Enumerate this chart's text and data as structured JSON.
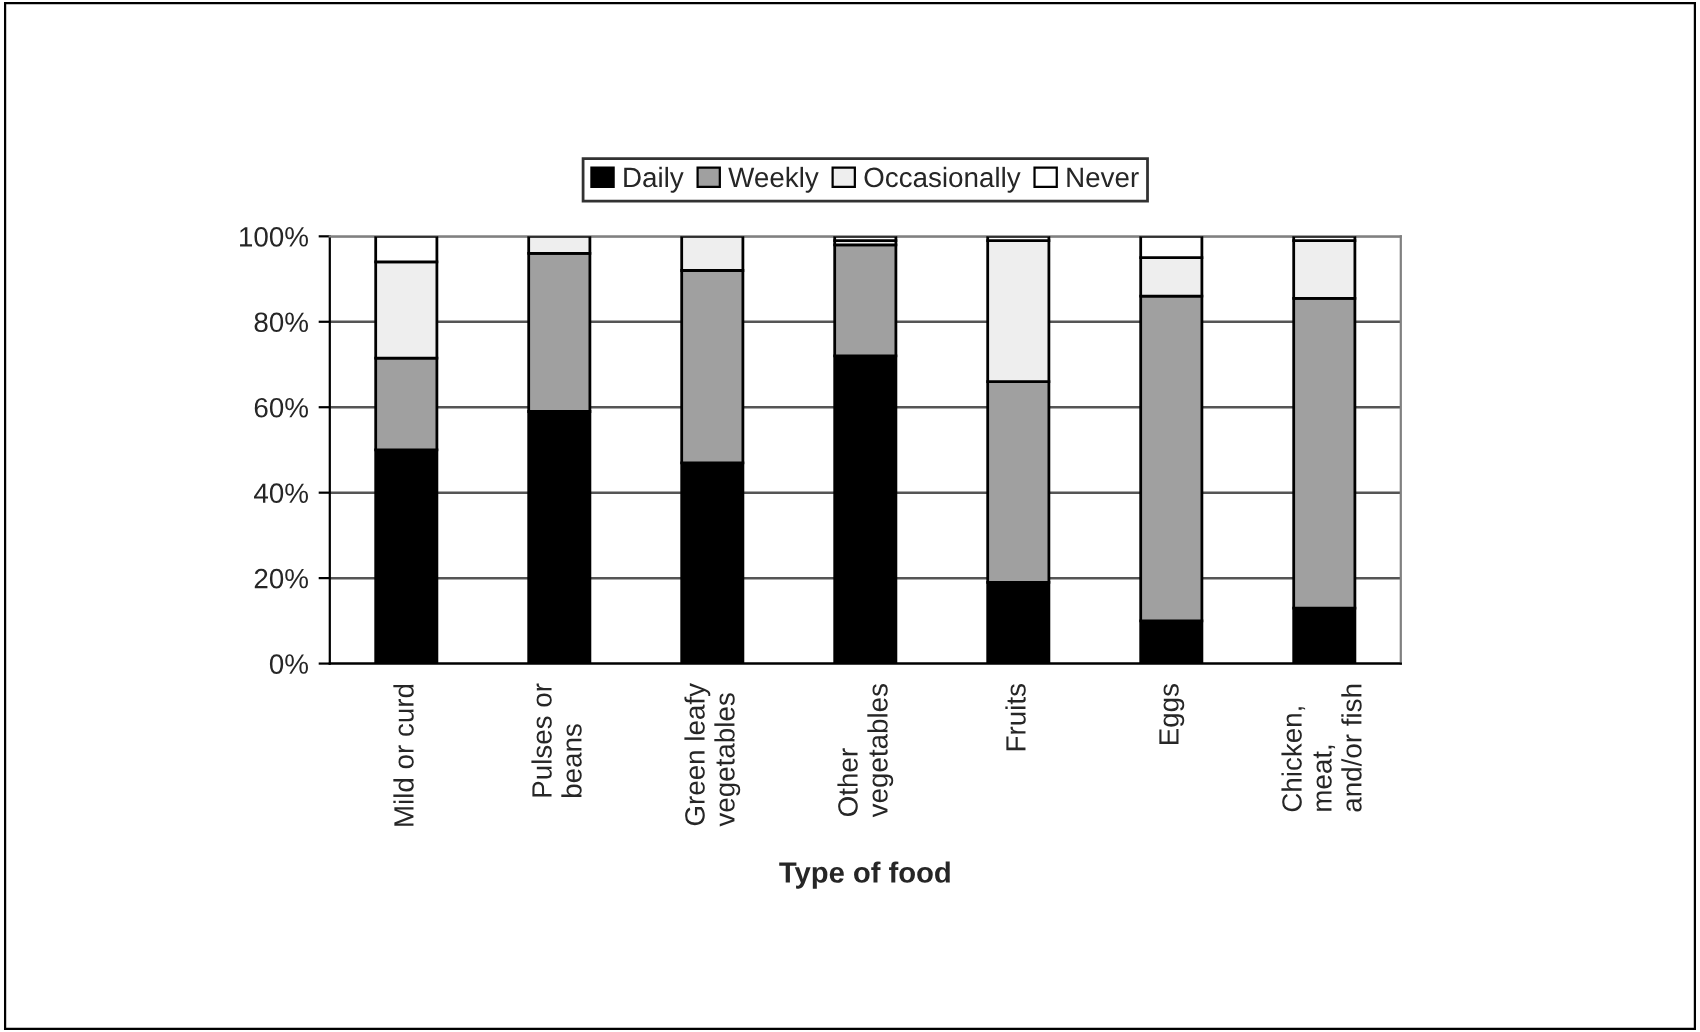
{
  "chart_data": {
    "type": "bar",
    "stacked": true,
    "xlabel": "Type of food",
    "categories": [
      "Mild or curd",
      "Pulses or\nbeans",
      "Green leafy\nvegetables",
      "Other\nvegetables",
      "Fruits",
      "Eggs",
      "Chicken,\nmeat,\nand/or fish"
    ],
    "series": [
      {
        "name": "Daily",
        "color": "#000000",
        "values": [
          50,
          59,
          47,
          72,
          19,
          10,
          13
        ]
      },
      {
        "name": "Weekly",
        "color": "#a0a0a0",
        "values": [
          21.5,
          37,
          45,
          26,
          47,
          76,
          72.5
        ]
      },
      {
        "name": "Occasionally",
        "color": "#eeeeee",
        "values": [
          22.5,
          4,
          8,
          1,
          33,
          9,
          13.5
        ]
      },
      {
        "name": "Never",
        "color": "#ffffff",
        "values": [
          6,
          0,
          0,
          1,
          1,
          5,
          1
        ]
      }
    ],
    "ylim": [
      0,
      100
    ],
    "yticks": [
      {
        "value": 0,
        "label": "0%"
      },
      {
        "value": 20,
        "label": "20%"
      },
      {
        "value": 40,
        "label": "40%"
      },
      {
        "value": 60,
        "label": "60%"
      },
      {
        "value": 80,
        "label": "80%"
      },
      {
        "value": 100,
        "label": "100%"
      }
    ],
    "grid": "y",
    "legend": "top"
  }
}
